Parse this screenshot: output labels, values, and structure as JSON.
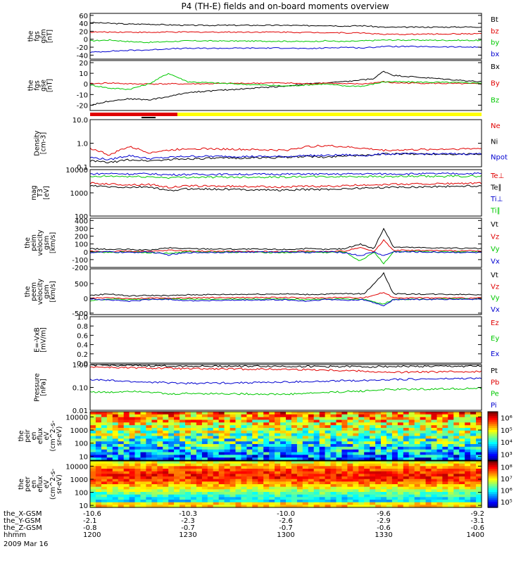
{
  "title": "P4 (TH-E) fields and on-board moments overview",
  "date_label": "2009 Mar 16",
  "footer": {
    "rows": [
      {
        "label": "the_X-GSM",
        "values": [
          "-10.6",
          "-10.3",
          "-10.0",
          "-9.6",
          "-9.2"
        ]
      },
      {
        "label": "the_Y-GSM",
        "values": [
          "-2.1",
          "-2.3",
          "-2.6",
          "-2.9",
          "-3.1"
        ]
      },
      {
        "label": "the_Z-GSM",
        "values": [
          "-0.8",
          "-0.7",
          "-0.7",
          "-0.6",
          "-0.6"
        ]
      },
      {
        "label": "hhmm",
        "values": [
          "1200",
          "1230",
          "1300",
          "1330",
          "1400"
        ]
      }
    ]
  },
  "colors": {
    "black": "#000000",
    "red": "#e00000",
    "green": "#00c800",
    "blue": "#0000d0",
    "yellow": "#ffff00"
  },
  "chart_data": [
    {
      "type": "line",
      "panel": "fgs-gsm",
      "ylabel": [
        "the",
        "fgs",
        "gsm",
        "[nT]"
      ],
      "ylim": [
        -50,
        65
      ],
      "yticks": [
        "60",
        "40",
        "20",
        "0",
        "-20",
        "-40"
      ],
      "ytick_values": [
        60,
        40,
        20,
        0,
        -20,
        -40
      ],
      "x": [
        1200,
        1210,
        1220,
        1230,
        1240,
        1250,
        1300,
        1310,
        1320,
        1330,
        1340,
        1350,
        1400
      ],
      "series": [
        {
          "name": "Bt",
          "color": "#000000",
          "values": [
            42,
            40,
            38,
            38,
            36,
            35,
            35,
            34,
            35,
            33,
            34,
            30,
            31
          ]
        },
        {
          "name": "bz",
          "color": "#e00000",
          "values": [
            18,
            18,
            18,
            17,
            18,
            18,
            18,
            17,
            17,
            16,
            16,
            12,
            14
          ]
        },
        {
          "name": "by",
          "color": "#00c800",
          "values": [
            -4,
            -2,
            -6,
            -8,
            -6,
            -4,
            -5,
            -6,
            -4,
            -6,
            -4,
            -2,
            -3
          ]
        },
        {
          "name": "bx",
          "color": "#0000d0",
          "values": [
            -33,
            -30,
            -28,
            -27,
            -24,
            -23,
            -22,
            -24,
            -22,
            -20,
            -22,
            -18,
            -20
          ]
        }
      ]
    },
    {
      "type": "line",
      "panel": "fgs-gse",
      "ylabel": [
        "the",
        "fgs",
        "gse",
        "[nT]"
      ],
      "ylim": [
        -25,
        22
      ],
      "yticks": [
        "20",
        "10",
        "0",
        "-10",
        "-20"
      ],
      "ytick_values": [
        20,
        10,
        0,
        -10,
        -20
      ],
      "x": [
        1200,
        1210,
        1220,
        1230,
        1240,
        1250,
        1300,
        1310,
        1320,
        1330,
        1340,
        1345,
        1350,
        1355,
        1400
      ],
      "series": [
        {
          "name": "Bx",
          "color": "#000000",
          "values": [
            -20,
            -16,
            -14,
            -15,
            -12,
            -8,
            -2,
            0,
            1,
            2,
            4,
            5,
            12,
            8,
            2
          ]
        },
        {
          "name": "By",
          "color": "#e00000",
          "values": [
            0,
            1,
            0,
            0,
            0,
            0,
            1,
            0,
            1,
            0,
            0,
            1,
            2,
            1,
            0
          ]
        },
        {
          "name": "Bz",
          "color": "#00c800",
          "values": [
            -1,
            -4,
            -5,
            0,
            10,
            2,
            -2,
            -1,
            0,
            -2,
            -2,
            0,
            2,
            2,
            1
          ]
        }
      ]
    },
    {
      "type": "line",
      "panel": "density",
      "yscale": "log",
      "ylabel": [
        "Density",
        "[cm-3]"
      ],
      "ylim": [
        0.1,
        10
      ],
      "yticks": [
        "10.0",
        "1.0",
        "0.1"
      ],
      "ytick_values": [
        10,
        1,
        0.1
      ],
      "x": [
        1200,
        1210,
        1220,
        1230,
        1240,
        1250,
        1300,
        1310,
        1320,
        1330,
        1340,
        1350,
        1400
      ],
      "series": [
        {
          "name": "Ne",
          "color": "#e00000",
          "values": [
            0.6,
            0.3,
            0.7,
            0.4,
            0.5,
            0.6,
            0.5,
            0.7,
            0.8,
            0.7,
            0.6,
            0.5,
            0.6
          ]
        },
        {
          "name": "Ni",
          "color": "#000000",
          "values": [
            0.18,
            0.15,
            0.2,
            0.18,
            0.2,
            0.22,
            0.25,
            0.28,
            0.25,
            0.3,
            0.3,
            0.35,
            0.35
          ]
        },
        {
          "name": "Npot",
          "color": "#0000d0",
          "values": [
            0.25,
            0.2,
            0.3,
            0.22,
            0.25,
            0.28,
            0.27,
            0.3,
            0.3,
            0.32,
            0.3,
            0.35,
            0.35
          ]
        }
      ]
    },
    {
      "type": "line",
      "panel": "temperature",
      "yscale": "log",
      "ylabel": [
        "mag",
        "T3",
        "[eV]"
      ],
      "ylim": [
        100,
        10000
      ],
      "yticks": [
        "10000",
        "1000",
        "100"
      ],
      "ytick_values": [
        10000,
        1000,
        100
      ],
      "x": [
        1200,
        1210,
        1220,
        1230,
        1240,
        1250,
        1300,
        1310,
        1320,
        1330,
        1340,
        1350,
        1400
      ],
      "series": [
        {
          "name": "Te⊥",
          "color": "#e00000",
          "values": [
            2600,
            2400,
            2200,
            2300,
            1700,
            2000,
            1800,
            1900,
            1900,
            2000,
            2200,
            2300,
            2600
          ]
        },
        {
          "name": "Te∥",
          "color": "#000000",
          "values": [
            2000,
            1800,
            1700,
            1800,
            1200,
            1500,
            1300,
            1400,
            1400,
            1500,
            1600,
            1700,
            2000
          ]
        },
        {
          "name": "Ti⊥",
          "color": "#0000d0",
          "values": [
            6500,
            6800,
            6500,
            6600,
            6000,
            6200,
            6400,
            6500,
            6300,
            6500,
            6600,
            6500,
            6800
          ]
        },
        {
          "name": "Ti∥",
          "color": "#00c800",
          "values": [
            4800,
            5200,
            5000,
            4900,
            4500,
            4700,
            4800,
            5000,
            4900,
            5000,
            5100,
            5000,
            5200
          ]
        }
      ]
    },
    {
      "type": "line",
      "panel": "ion-velocity",
      "ylabel": [
        "the",
        "peim",
        "velocity",
        "gsm",
        "[km/s]"
      ],
      "ylim": [
        -200,
        430
      ],
      "yticks": [
        "400",
        "300",
        "200",
        "100",
        "0",
        "-100",
        "-200"
      ],
      "ytick_values": [
        400,
        300,
        200,
        100,
        0,
        -100,
        -200
      ],
      "x": [
        1200,
        1210,
        1220,
        1230,
        1240,
        1250,
        1300,
        1310,
        1320,
        1330,
        1338,
        1345,
        1350,
        1355,
        1400
      ],
      "series": [
        {
          "name": "Vt",
          "color": "#000000",
          "values": [
            40,
            30,
            30,
            20,
            50,
            40,
            30,
            40,
            30,
            40,
            100,
            40,
            300,
            60,
            40
          ]
        },
        {
          "name": "Vz",
          "color": "#e00000",
          "values": [
            10,
            0,
            10,
            0,
            20,
            10,
            0,
            10,
            0,
            10,
            60,
            0,
            150,
            20,
            10
          ]
        },
        {
          "name": "Vy",
          "color": "#00c800",
          "values": [
            0,
            -10,
            0,
            -10,
            -20,
            0,
            -10,
            0,
            -10,
            0,
            -120,
            0,
            -150,
            0,
            0
          ]
        },
        {
          "name": "Vx",
          "color": "#0000d0",
          "values": [
            -10,
            0,
            -10,
            0,
            -40,
            -10,
            0,
            -10,
            0,
            -10,
            -50,
            0,
            -50,
            0,
            -10
          ]
        }
      ]
    },
    {
      "type": "line",
      "panel": "electron-velocity",
      "ylabel": [
        "the",
        "peem",
        "velocity",
        "gsm",
        "[km/s]"
      ],
      "ylim": [
        -550,
        1000
      ],
      "yticks": [
        "500",
        "0",
        "-500"
      ],
      "ytick_values": [
        500,
        0,
        -500
      ],
      "x": [
        1200,
        1210,
        1220,
        1230,
        1240,
        1250,
        1300,
        1310,
        1320,
        1330,
        1340,
        1350,
        1355,
        1400
      ],
      "series": [
        {
          "name": "Vt",
          "color": "#000000",
          "values": [
            100,
            150,
            80,
            100,
            90,
            120,
            150,
            130,
            140,
            160,
            150,
            850,
            150,
            130
          ]
        },
        {
          "name": "Vz",
          "color": "#e00000",
          "values": [
            0,
            30,
            -20,
            10,
            0,
            20,
            30,
            10,
            20,
            30,
            20,
            200,
            20,
            10
          ]
        },
        {
          "name": "Vy",
          "color": "#00c800",
          "values": [
            -80,
            -20,
            -40,
            -30,
            -20,
            -30,
            -20,
            -40,
            -30,
            -20,
            -30,
            -200,
            -30,
            -20
          ]
        },
        {
          "name": "Vx",
          "color": "#0000d0",
          "values": [
            -20,
            -50,
            -100,
            -40,
            -30,
            -80,
            -50,
            -100,
            -40,
            -60,
            -50,
            -250,
            -40,
            -30
          ]
        }
      ]
    },
    {
      "type": "line",
      "panel": "e-field",
      "ylabel": [
        "E=-VxB",
        "[mV/m]"
      ],
      "ylim": [
        0,
        1
      ],
      "yticks": [
        "1.0",
        "0.8",
        "0.6",
        "0.4",
        "0.2",
        "0.0"
      ],
      "ytick_values": [
        1,
        0.8,
        0.6,
        0.4,
        0.2,
        0
      ],
      "series": [
        {
          "name": "Ez",
          "color": "#e00000",
          "values": []
        },
        {
          "name": "Ey",
          "color": "#00c800",
          "values": []
        },
        {
          "name": "Ex",
          "color": "#0000d0",
          "values": []
        }
      ]
    },
    {
      "type": "line",
      "panel": "pressure",
      "yscale": "log",
      "ylabel": [
        "Pressure",
        "[nPa]"
      ],
      "ylim": [
        0.01,
        1
      ],
      "yticks": [
        "1.00",
        "0.10",
        "0.01"
      ],
      "ytick_values": [
        1,
        0.1,
        0.01
      ],
      "x": [
        1200,
        1210,
        1220,
        1230,
        1240,
        1250,
        1300,
        1310,
        1320,
        1330,
        1340,
        1350,
        1400
      ],
      "series": [
        {
          "name": "Pt",
          "color": "#000000",
          "values": [
            0.95,
            0.92,
            0.9,
            0.88,
            0.86,
            0.85,
            0.84,
            0.83,
            0.82,
            0.82,
            0.8,
            0.82,
            0.85
          ]
        },
        {
          "name": "Pb",
          "color": "#e00000",
          "values": [
            0.8,
            0.75,
            0.72,
            0.7,
            0.68,
            0.65,
            0.62,
            0.6,
            0.58,
            0.55,
            0.52,
            0.45,
            0.5
          ]
        },
        {
          "name": "Pe",
          "color": "#00c800",
          "values": [
            0.065,
            0.06,
            0.07,
            0.065,
            0.05,
            0.055,
            0.05,
            0.055,
            0.06,
            0.065,
            0.07,
            0.08,
            0.09
          ]
        },
        {
          "name": "Pi",
          "color": "#0000d0",
          "values": [
            0.22,
            0.2,
            0.18,
            0.17,
            0.16,
            0.15,
            0.17,
            0.18,
            0.18,
            0.2,
            0.2,
            0.22,
            0.25
          ]
        }
      ]
    },
    {
      "type": "heatmap",
      "panel": "ion-flux",
      "yscale": "log",
      "ylabel": [
        "the",
        "peir",
        "en",
        "eflux",
        "eV",
        "(cm^2-s-",
        "sr-eV)"
      ],
      "ylim": [
        5,
        25000
      ],
      "yticks": [
        "10000",
        "1000",
        "100",
        "10"
      ],
      "ytick_values": [
        10000,
        1000,
        100,
        10
      ],
      "colorbar_labels": [
        "10⁶",
        "10⁵",
        "10⁴",
        "10³"
      ],
      "colorbar_range": [
        2.5,
        6.5
      ]
    },
    {
      "type": "heatmap",
      "panel": "electron-flux",
      "yscale": "log",
      "ylabel": [
        "the",
        "peer",
        "en",
        "eflux",
        "eV",
        "(cm^2-s-",
        "sr-eV)"
      ],
      "ylim": [
        7,
        25000
      ],
      "yticks": [
        "10000",
        "1000",
        "100",
        "10"
      ],
      "ytick_values": [
        10000,
        1000,
        100,
        10
      ],
      "colorbar_labels": [
        "10⁸",
        "10⁷",
        "10⁶",
        "10⁵"
      ],
      "colorbar_range": [
        4.5,
        8.5
      ]
    }
  ]
}
